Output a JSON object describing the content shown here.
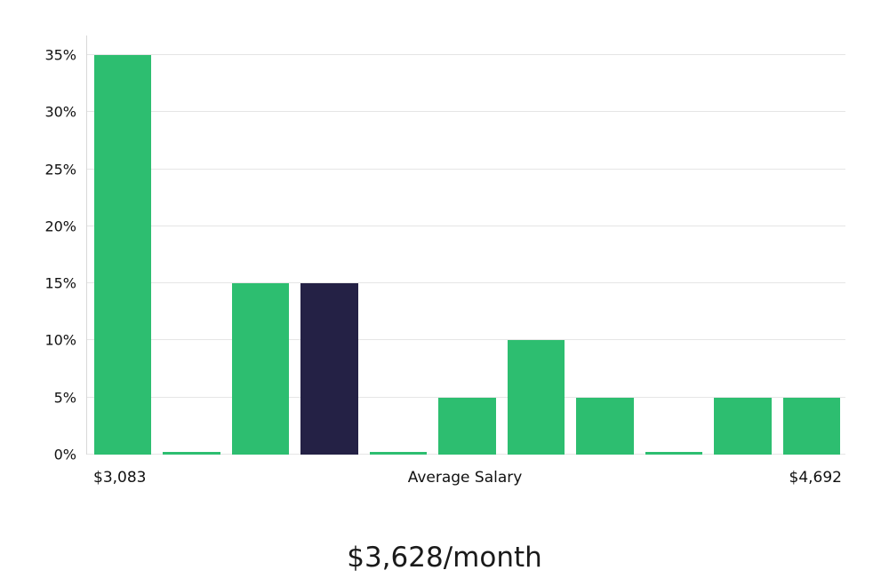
{
  "chart_data": {
    "type": "bar",
    "title": "$3,628/month",
    "values": [
      35,
      0.2,
      15,
      15,
      0.2,
      5,
      10,
      5,
      0.2,
      5,
      5
    ],
    "highlight_index": 3,
    "yticks": [
      0,
      5,
      10,
      15,
      20,
      25,
      30,
      35
    ],
    "ytick_labels": [
      "0%",
      "5%",
      "10%",
      "15%",
      "20%",
      "25%",
      "30%",
      "35%"
    ],
    "ylim": [
      0,
      36.7
    ],
    "grid": "horizontal",
    "legend": "none",
    "x_axis_labels": {
      "left": "$3,083",
      "center": "Average Salary",
      "right": "$4,692"
    },
    "colors": {
      "bar": "#2dbe70",
      "highlight": "#242145",
      "grid": "#e5e5e5",
      "axis": "#d8d8d8",
      "text": "#111111"
    }
  }
}
